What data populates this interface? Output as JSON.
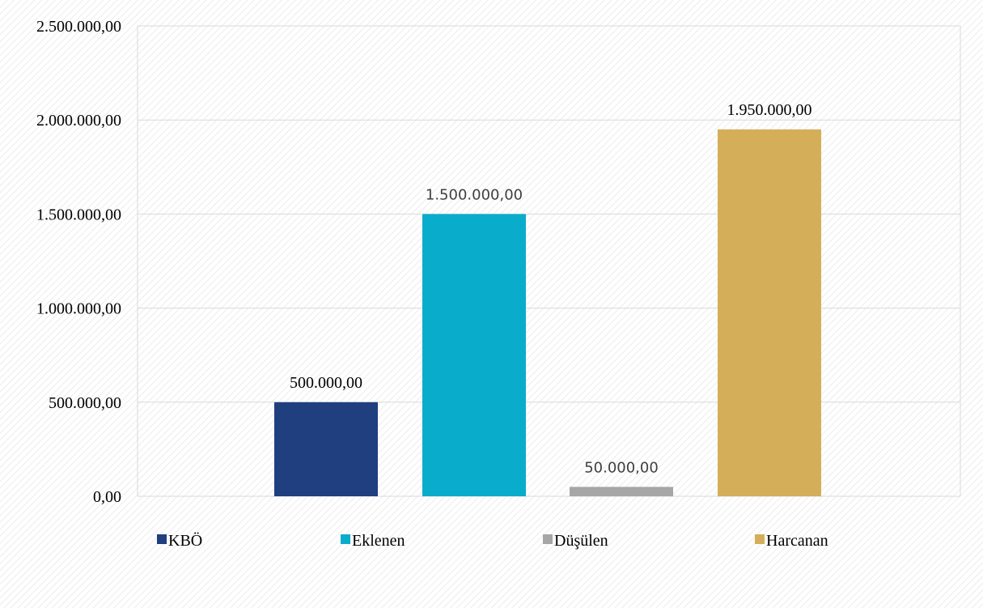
{
  "chart_data": {
    "type": "bar",
    "categories": [
      "KBÖ",
      "Eklenen",
      "Düşülen",
      "Harcanan"
    ],
    "values": [
      500000,
      1500000,
      50000,
      1950000
    ],
    "value_labels": [
      "500.000,00",
      "1.500.000,00",
      "50.000,00",
      "1.950.000,00"
    ],
    "ylim": [
      0,
      2500000
    ],
    "yticks": [
      0,
      500000,
      1000000,
      1500000,
      2000000,
      2500000
    ],
    "ytick_labels": [
      "0,00",
      "500.000,00",
      "1.000.000,00",
      "1.500.000,00",
      "2.000.000,00",
      "2.500.000,00"
    ],
    "colors": [
      "#1f3f7f",
      "#0aaccc",
      "#a6a6a6",
      "#d4ae58"
    ],
    "legend": {
      "placement": "bottom",
      "entries": [
        "KBÖ",
        "Eklenen",
        "Düşülen",
        "Harcanan"
      ]
    },
    "grid": true,
    "title": "",
    "xlabel": "",
    "ylabel": ""
  }
}
